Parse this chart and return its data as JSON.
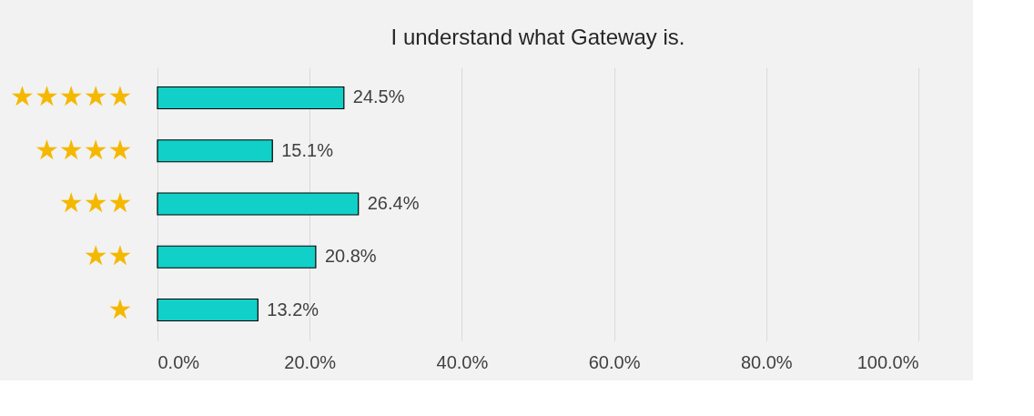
{
  "chart_data": {
    "type": "bar",
    "orientation": "horizontal",
    "title": "I understand what Gateway is.",
    "categories": [
      "★★★★★",
      "★★★★",
      "★★★",
      "★★",
      "★"
    ],
    "values": [
      24.5,
      15.1,
      26.4,
      20.8,
      13.2
    ],
    "value_labels": [
      "24.5%",
      "15.1%",
      "26.4%",
      "20.8%",
      "13.2%"
    ],
    "color": "#11d0c8",
    "xlim": [
      0,
      100
    ],
    "xticks": [
      {
        "value": 0,
        "label": "0.0%"
      },
      {
        "value": 20,
        "label": "20.0%"
      },
      {
        "value": 40,
        "label": "40.0%"
      },
      {
        "value": 60,
        "label": "60.0%"
      },
      {
        "value": 80,
        "label": "80.0%"
      },
      {
        "value": 100,
        "label": "100.0%"
      }
    ],
    "grid": "x"
  }
}
